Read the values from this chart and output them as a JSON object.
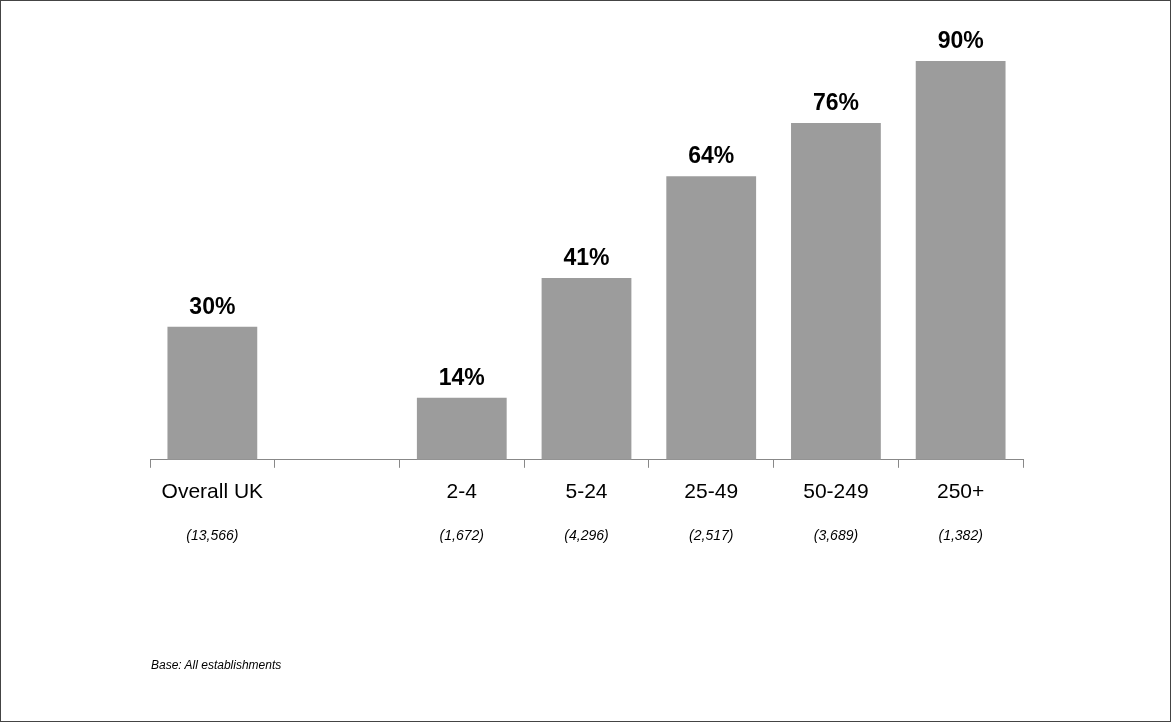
{
  "chart_data": {
    "type": "bar",
    "categories": [
      "Overall UK",
      null,
      "2-4",
      "5-24",
      "25-49",
      "50-249",
      "250+"
    ],
    "values": [
      30,
      null,
      14,
      41,
      64,
      76,
      90
    ],
    "color": "#9c9c9c",
    "value_labels": [
      "30%",
      null,
      "14%",
      "41%",
      "64%",
      "76%",
      "90%"
    ],
    "annotations": [
      "(13,566)",
      "(1,672)",
      "(4,296)",
      "(2,517)",
      "(3,689)",
      "(1,382)",
      "Base: All establishments"
    ],
    "grid": false,
    "legend": false
  }
}
